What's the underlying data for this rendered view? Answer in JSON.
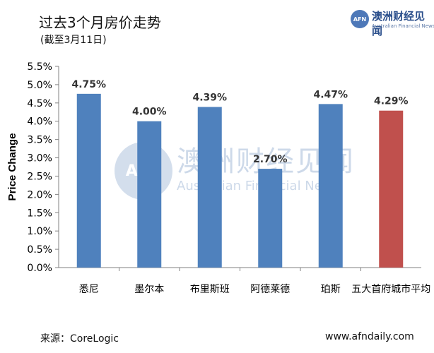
{
  "title": "过去3个月房价走势",
  "subtitle": "(截至3月11日)",
  "logo": {
    "badge": "AFN",
    "name_cn": "澳洲财经见闻",
    "name_en": "Australian Financial News"
  },
  "watermark": {
    "badge": "AFN",
    "text_cn": "澳洲财经见闻",
    "text_en": "Australian Financial News"
  },
  "source_text": "来源：CoreLogic",
  "website": "www.afndaily.com",
  "chart_data": {
    "type": "bar",
    "categories": [
      "悉尼",
      "墨尔本",
      "布里斯班",
      "阿德莱德",
      "珀斯",
      "五大首府城市平均"
    ],
    "values": [
      4.75,
      4.0,
      4.39,
      2.7,
      4.47,
      4.29
    ],
    "value_labels": [
      "4.75%",
      "4.00%",
      "4.39%",
      "2.70%",
      "4.47%",
      "4.29%"
    ],
    "ylabel": "Price Change",
    "ylim": [
      0,
      5.5
    ],
    "ytick_values": [
      0,
      0.5,
      1.0,
      1.5,
      2.0,
      2.5,
      3.0,
      3.5,
      4.0,
      4.5,
      5.0,
      5.5
    ],
    "ytick_labels": [
      "0.0%",
      "0.5%",
      "1.0%",
      "1.5%",
      "2.0%",
      "2.5%",
      "3.0%",
      "3.5%",
      "4.0%",
      "4.5%",
      "5.0%",
      "5.5%"
    ],
    "grid": false,
    "legend": "none",
    "colors": {
      "bar": "#4f81bd",
      "highlight_bar": "#c0504d",
      "axis": "#808080"
    },
    "highlight_index": 5
  }
}
